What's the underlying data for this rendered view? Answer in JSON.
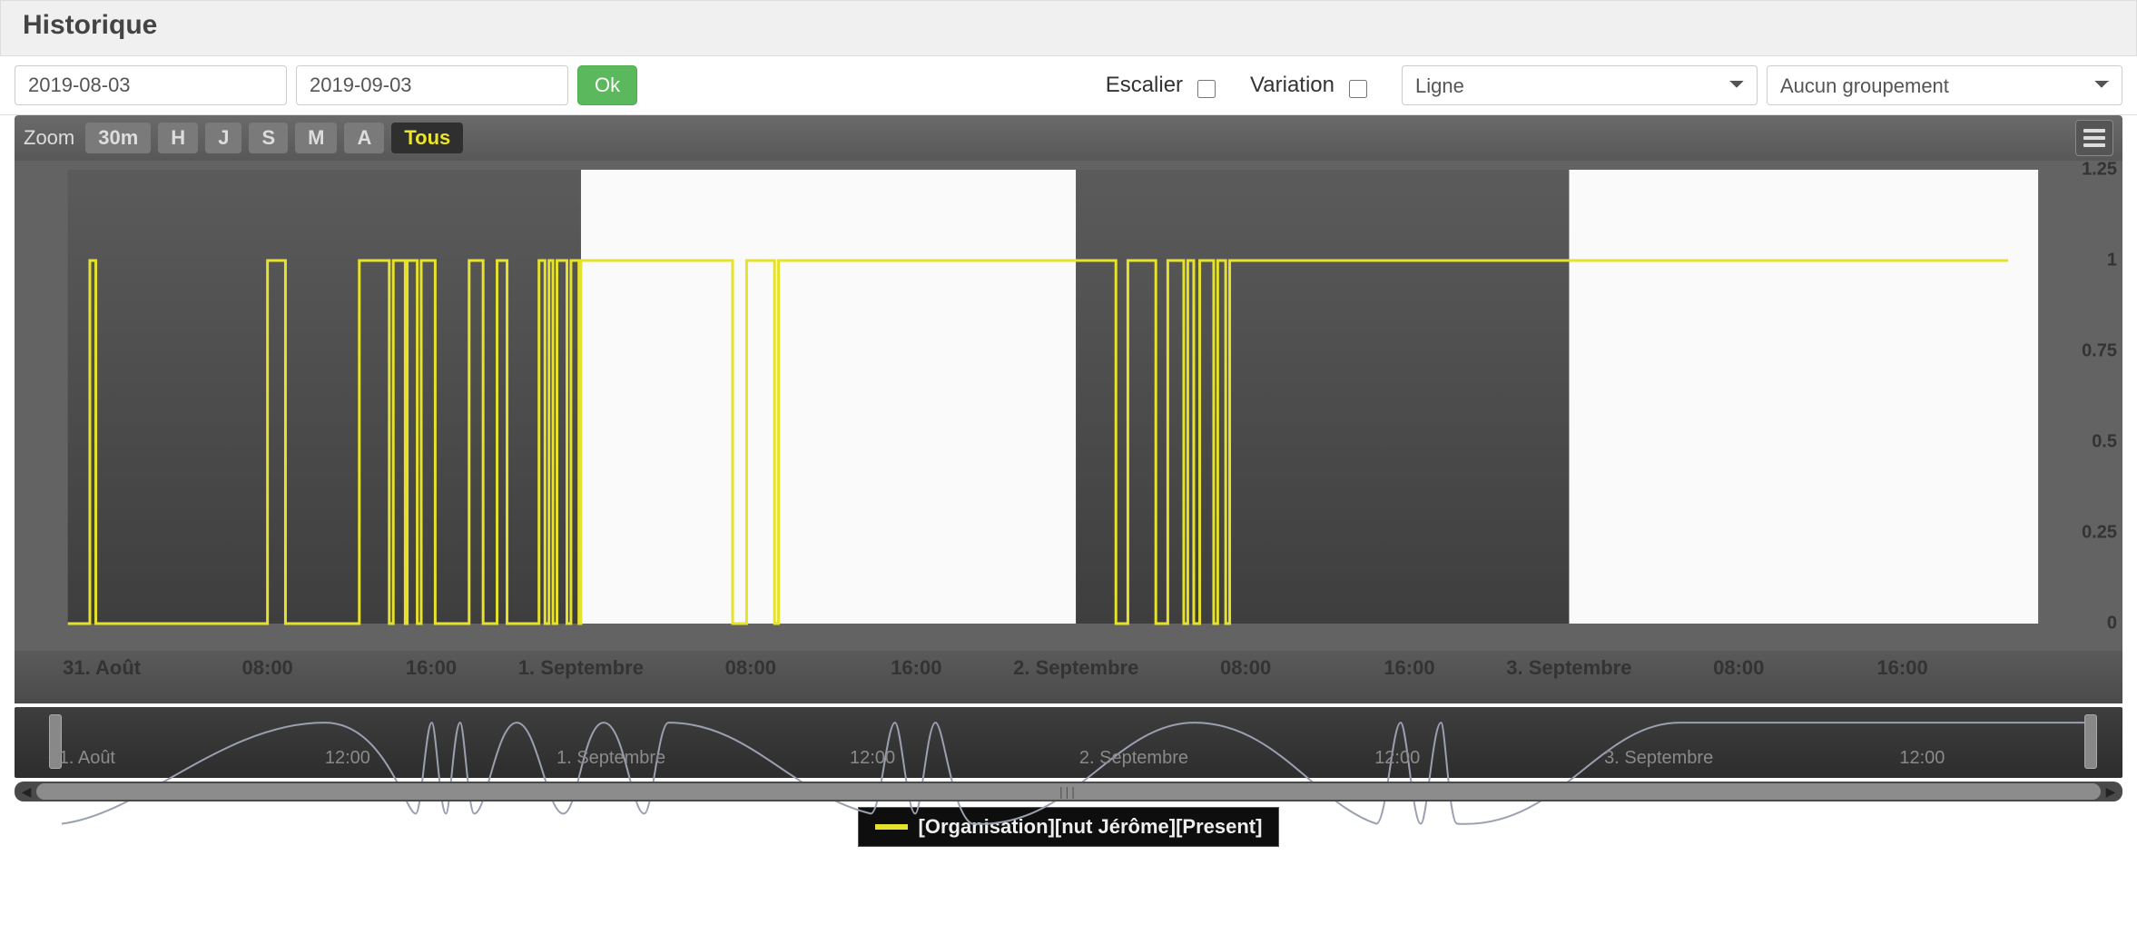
{
  "header": {
    "title": "Historique"
  },
  "controls": {
    "date_start": "2019-08-03",
    "date_end": "2019-09-03",
    "ok_label": "Ok",
    "escalier_label": "Escalier",
    "escalier_checked": false,
    "variation_label": "Variation",
    "variation_checked": false,
    "chart_type_selected": "Ligne",
    "grouping_selected": "Aucun groupement"
  },
  "zoom": {
    "label": "Zoom",
    "buttons": [
      "30m",
      "H",
      "J",
      "S",
      "M",
      "A",
      "Tous"
    ],
    "active": "Tous"
  },
  "chart": {
    "type": "line-step",
    "series_color": "#e6e22c",
    "line_width": 3,
    "background_dark": "#4c4c4c",
    "background_light": "#fafafa",
    "bands": [
      {
        "from_pct": 1.3,
        "to_pct": 27.0,
        "color": "dark"
      },
      {
        "from_pct": 27.0,
        "to_pct": 51.8,
        "color": "light"
      },
      {
        "from_pct": 51.8,
        "to_pct": 76.5,
        "color": "dark"
      },
      {
        "from_pct": 76.5,
        "to_pct": 100.0,
        "color": "light"
      }
    ],
    "y": {
      "min": 0,
      "max": 1.25,
      "ticks": [
        0,
        0.25,
        0.5,
        0.75,
        1,
        1.25
      ],
      "labels": [
        "0",
        "0.25",
        "0.5",
        "0.75",
        "1",
        "1.25"
      ]
    },
    "x": {
      "ticks_pct": [
        3.0,
        11.3,
        19.5,
        27.0,
        35.5,
        43.8,
        51.8,
        60.3,
        68.5,
        76.5,
        85.0,
        93.2
      ],
      "labels": [
        "31. Août",
        "08:00",
        "16:00",
        "1. Septembre",
        "08:00",
        "16:00",
        "2. Septembre",
        "08:00",
        "16:00",
        "3. Septembre",
        "08:00",
        "16:00"
      ]
    },
    "data_step_pct": [
      [
        1.3,
        0
      ],
      [
        2.4,
        0
      ],
      [
        2.4,
        1
      ],
      [
        2.7,
        1
      ],
      [
        2.7,
        0
      ],
      [
        11.3,
        0
      ],
      [
        11.3,
        1
      ],
      [
        12.2,
        1
      ],
      [
        12.2,
        0
      ],
      [
        15.9,
        0
      ],
      [
        15.9,
        1
      ],
      [
        17.4,
        1
      ],
      [
        17.4,
        0
      ],
      [
        17.6,
        0
      ],
      [
        17.6,
        1
      ],
      [
        18.2,
        1
      ],
      [
        18.2,
        0
      ],
      [
        18.3,
        0
      ],
      [
        18.3,
        1
      ],
      [
        18.8,
        1
      ],
      [
        18.8,
        0
      ],
      [
        19.0,
        0
      ],
      [
        19.0,
        1
      ],
      [
        19.7,
        1
      ],
      [
        19.7,
        0
      ],
      [
        21.4,
        0
      ],
      [
        21.4,
        1
      ],
      [
        22.1,
        1
      ],
      [
        22.1,
        0
      ],
      [
        22.8,
        0
      ],
      [
        22.8,
        1
      ],
      [
        23.3,
        1
      ],
      [
        23.3,
        0
      ],
      [
        24.9,
        0
      ],
      [
        24.9,
        1
      ],
      [
        25.2,
        1
      ],
      [
        25.2,
        0
      ],
      [
        25.4,
        0
      ],
      [
        25.4,
        1
      ],
      [
        25.6,
        1
      ],
      [
        25.6,
        0
      ],
      [
        25.8,
        0
      ],
      [
        25.8,
        1
      ],
      [
        26.3,
        1
      ],
      [
        26.3,
        0
      ],
      [
        26.5,
        0
      ],
      [
        26.5,
        1
      ],
      [
        26.9,
        1
      ],
      [
        26.9,
        0
      ],
      [
        27.0,
        0
      ],
      [
        27.0,
        1
      ],
      [
        34.6,
        1
      ],
      [
        34.6,
        0
      ],
      [
        35.3,
        0
      ],
      [
        35.3,
        1
      ],
      [
        36.7,
        1
      ],
      [
        36.7,
        0
      ],
      [
        36.9,
        0
      ],
      [
        36.9,
        1
      ],
      [
        53.8,
        1
      ],
      [
        53.8,
        0
      ],
      [
        54.4,
        0
      ],
      [
        54.4,
        1
      ],
      [
        55.8,
        1
      ],
      [
        55.8,
        0
      ],
      [
        56.4,
        0
      ],
      [
        56.4,
        1
      ],
      [
        57.2,
        1
      ],
      [
        57.2,
        0
      ],
      [
        57.4,
        0
      ],
      [
        57.4,
        1
      ],
      [
        57.7,
        1
      ],
      [
        57.7,
        0
      ],
      [
        58.0,
        0
      ],
      [
        58.0,
        1
      ],
      [
        58.7,
        1
      ],
      [
        58.7,
        0
      ],
      [
        58.9,
        0
      ],
      [
        58.9,
        1
      ],
      [
        59.3,
        1
      ],
      [
        59.3,
        0
      ],
      [
        59.5,
        0
      ],
      [
        59.5,
        1
      ],
      [
        98.5,
        1
      ]
    ]
  },
  "navigator": {
    "x_ticks_pct": [
      3.2,
      15.8,
      28.3,
      40.7,
      53.1,
      65.6,
      78.0,
      90.5
    ],
    "x_labels": [
      "31. Août",
      "12:00",
      "1. Septembre",
      "12:00",
      "2. Septembre",
      "12:00",
      "3. Septembre",
      "12:00"
    ],
    "line_color": "#9aa0b0"
  },
  "legend": {
    "series_label": "[Organisation][nut Jérôme][Present]",
    "series_color": "#e6e22c"
  }
}
